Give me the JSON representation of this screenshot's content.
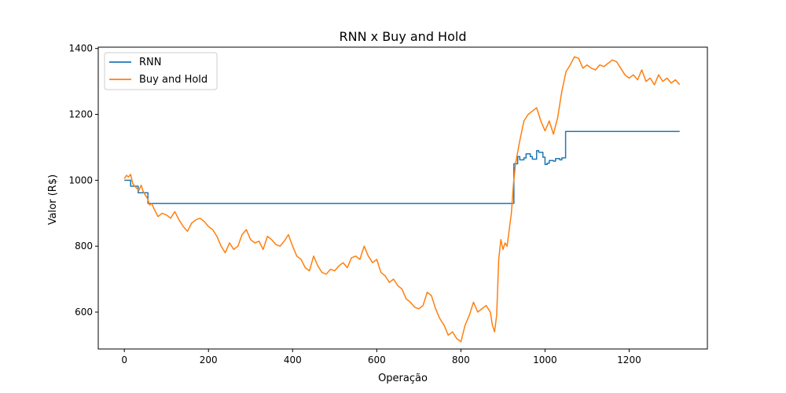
{
  "chart_data": {
    "type": "line",
    "title": "RNN x Buy and Hold",
    "xlabel": "Operação",
    "ylabel": "Valor (R$)",
    "xlim": [
      -62,
      1386
    ],
    "ylim": [
      488,
      1404
    ],
    "xticks": [
      0,
      200,
      400,
      600,
      800,
      1000,
      1200
    ],
    "yticks": [
      600,
      800,
      1000,
      1200,
      1400
    ],
    "grid": false,
    "legend_position": "top-left",
    "series": [
      {
        "name": "RNN",
        "color": "#1f77b4",
        "step": true,
        "x": [
          0,
          14,
          15,
          32,
          33,
          55,
          56,
          925,
          926,
          935,
          940,
          950,
          955,
          965,
          970,
          980,
          985,
          995,
          1000,
          1005,
          1010,
          1020,
          1025,
          1035,
          1040,
          1048,
          1049,
          1320
        ],
        "y": [
          1000,
          1000,
          982,
          982,
          962,
          962,
          930,
          930,
          1050,
          1072,
          1062,
          1068,
          1080,
          1072,
          1064,
          1090,
          1085,
          1070,
          1048,
          1052,
          1060,
          1058,
          1066,
          1062,
          1068,
          1068,
          1148,
          1148
        ]
      },
      {
        "name": "Buy and Hold",
        "color": "#ff7f0e",
        "x": [
          0,
          5,
          10,
          15,
          20,
          25,
          30,
          35,
          40,
          45,
          50,
          55,
          60,
          65,
          70,
          80,
          90,
          100,
          110,
          120,
          130,
          140,
          150,
          160,
          170,
          180,
          190,
          200,
          210,
          220,
          230,
          240,
          250,
          260,
          270,
          280,
          290,
          300,
          310,
          320,
          330,
          340,
          350,
          360,
          370,
          380,
          390,
          400,
          410,
          420,
          430,
          440,
          450,
          460,
          470,
          480,
          490,
          500,
          510,
          520,
          530,
          540,
          550,
          560,
          570,
          580,
          590,
          600,
          610,
          620,
          630,
          640,
          650,
          660,
          670,
          680,
          690,
          700,
          710,
          720,
          730,
          740,
          750,
          760,
          770,
          780,
          790,
          800,
          810,
          820,
          830,
          840,
          850,
          860,
          870,
          875,
          880,
          885,
          890,
          895,
          900,
          905,
          910,
          915,
          920,
          925,
          930,
          940,
          950,
          960,
          970,
          980,
          990,
          1000,
          1010,
          1020,
          1030,
          1040,
          1050,
          1060,
          1070,
          1080,
          1090,
          1100,
          1110,
          1120,
          1130,
          1140,
          1150,
          1160,
          1170,
          1180,
          1190,
          1200,
          1210,
          1220,
          1230,
          1240,
          1250,
          1260,
          1270,
          1280,
          1290,
          1300,
          1310,
          1320
        ],
        "y": [
          1005,
          1015,
          1010,
          1018,
          990,
          982,
          975,
          970,
          985,
          965,
          955,
          945,
          925,
          930,
          915,
          890,
          900,
          895,
          885,
          905,
          880,
          860,
          845,
          870,
          880,
          885,
          875,
          860,
          850,
          830,
          800,
          780,
          810,
          790,
          800,
          835,
          850,
          820,
          810,
          815,
          790,
          830,
          820,
          805,
          800,
          815,
          835,
          800,
          770,
          760,
          735,
          725,
          770,
          740,
          720,
          715,
          730,
          725,
          740,
          750,
          735,
          765,
          770,
          760,
          800,
          770,
          750,
          760,
          720,
          710,
          690,
          700,
          680,
          670,
          640,
          630,
          615,
          610,
          620,
          660,
          650,
          610,
          580,
          560,
          530,
          540,
          520,
          510,
          560,
          590,
          630,
          600,
          610,
          620,
          600,
          560,
          540,
          590,
          760,
          820,
          790,
          810,
          800,
          850,
          900,
          990,
          1050,
          1120,
          1180,
          1200,
          1210,
          1220,
          1180,
          1150,
          1180,
          1140,
          1190,
          1270,
          1330,
          1350,
          1375,
          1370,
          1340,
          1350,
          1340,
          1335,
          1350,
          1345,
          1355,
          1365,
          1360,
          1340,
          1320,
          1310,
          1320,
          1305,
          1335,
          1300,
          1310,
          1290,
          1320,
          1300,
          1310,
          1295,
          1305,
          1290
        ]
      }
    ]
  }
}
